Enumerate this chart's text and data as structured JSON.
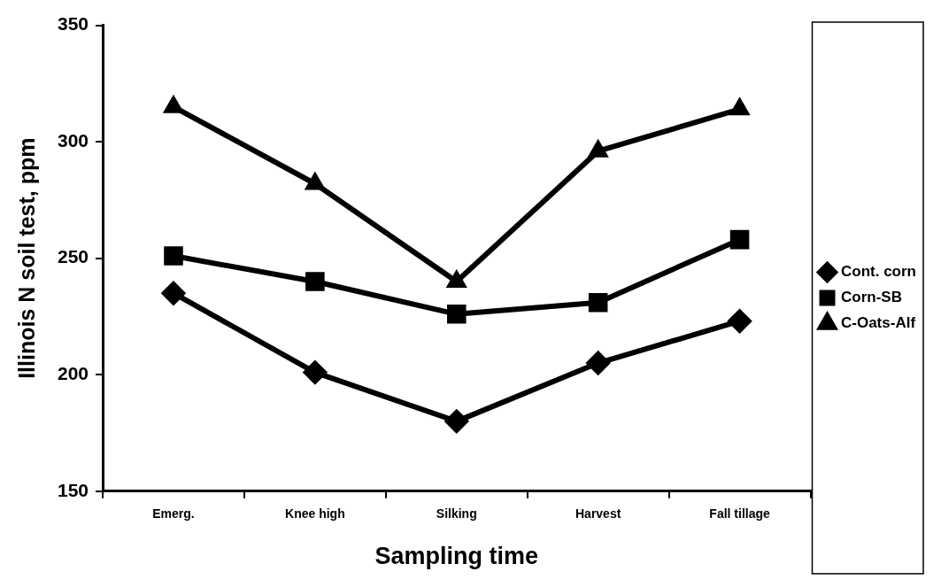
{
  "chart_data": {
    "type": "line",
    "xlabel": "Sampling time",
    "ylabel": "Illinois N soil test, ppm",
    "categories": [
      "Emerg.",
      "Knee high",
      "Silking",
      "Harvest",
      "Fall tillage"
    ],
    "ylim": [
      150,
      350
    ],
    "yticks": [
      150,
      200,
      250,
      300,
      350
    ],
    "grid": false,
    "legend": "right",
    "line_style": "solid",
    "series": [
      {
        "name": "Cont. corn",
        "color": "#000000",
        "marker": "diamond",
        "values": [
          235,
          201,
          180,
          205,
          223
        ]
      },
      {
        "name": "Corn-SB",
        "color": "#000000",
        "marker": "square",
        "values": [
          251,
          240,
          226,
          231,
          258
        ]
      },
      {
        "name": "C-Oats-Alf",
        "color": "#000000",
        "marker": "triangle",
        "values": [
          315,
          282,
          240,
          296,
          314
        ]
      }
    ]
  }
}
